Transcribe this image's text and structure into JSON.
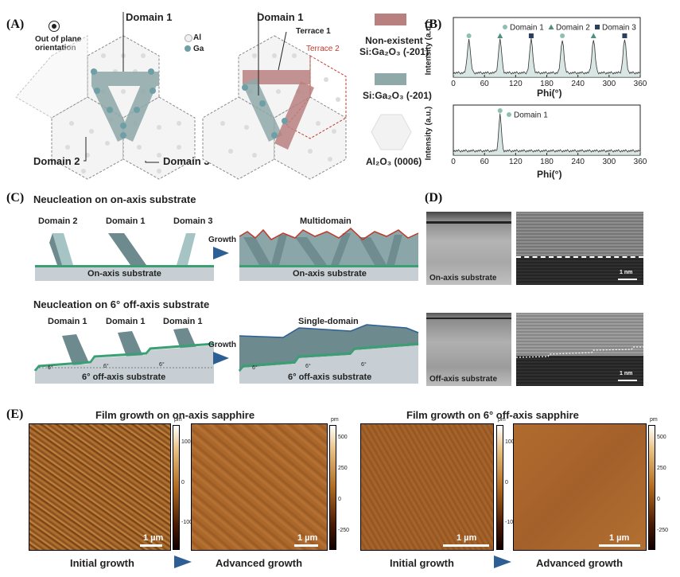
{
  "panels": {
    "a": "(A)",
    "b": "(B)",
    "c": "(C)",
    "d": "(D)",
    "e": "(E)"
  },
  "panel_a": {
    "out_of_plane": "Out of plane\norientation",
    "domain1": "Domain 1",
    "domain2": "Domain 2",
    "domain3": "Domain 3",
    "legend_al": "Al",
    "legend_ga": "Ga",
    "terrace1": "Terrace 1",
    "terrace2": "Terrace 2",
    "key_nonexistent": "Non-existent\nSi:Ga₂O₃ (-201)",
    "key_existing": "Si:Ga₂O₃ (-201)",
    "key_substrate": "Al₂O₃ (0006)",
    "colors": {
      "nonexistent": "#b98080",
      "existing": "#8fa8a8",
      "al": "#f2f2f2",
      "ga": "#6e9ea6"
    }
  },
  "chart_data": [
    {
      "type": "line",
      "xlabel": "Phi(°)",
      "ylabel": "Intensity (a.u.)",
      "xlim": [
        0,
        360
      ],
      "xticks": [
        "0",
        "60",
        "120",
        "180",
        "240",
        "300",
        "360"
      ],
      "legend": [
        "Domain 1",
        "Domain 2",
        "Domain 3"
      ],
      "peaks": [
        {
          "x": 30,
          "domain": "Domain 1"
        },
        {
          "x": 90,
          "domain": "Domain 2"
        },
        {
          "x": 150,
          "domain": "Domain 3"
        },
        {
          "x": 210,
          "domain": "Domain 1"
        },
        {
          "x": 270,
          "domain": "Domain 2"
        },
        {
          "x": 330,
          "domain": "Domain 3"
        }
      ]
    },
    {
      "type": "line",
      "xlabel": "Phi(°)",
      "ylabel": "Intensity (a.u.)",
      "xlim": [
        0,
        360
      ],
      "xticks": [
        "0",
        "60",
        "120",
        "180",
        "240",
        "300",
        "360"
      ],
      "legend": [
        "Domain 1"
      ],
      "peaks": [
        {
          "x": 90,
          "domain": "Domain 1"
        }
      ]
    }
  ],
  "panel_c": {
    "title_on": "Neucleation on on-axis substrate",
    "title_off": "Neucleation on 6° off-axis substrate",
    "growth": "Growth",
    "on_domains": [
      "Domain 2",
      "Domain 1",
      "Domain 3"
    ],
    "off_domains": [
      "Domain 1",
      "Domain 1",
      "Domain 1"
    ],
    "multidomain": "Multidomain",
    "single": "Single-domain",
    "on_sub": "On-axis substrate",
    "off_sub": "6° off-axis substrate",
    "angle": "6°"
  },
  "panel_d": {
    "on_sub": "On-axis substrate",
    "off_sub": "Off-axis substrate",
    "scale": "1 nm"
  },
  "panel_e": {
    "title_on": "Film growth on on-axis sapphire",
    "title_off": "Film growth  on 6° off-axis sapphire",
    "initial": "Initial growth",
    "advanced": "Advanced growth",
    "scale": "1 µm",
    "unit": "pm",
    "cbar1": [
      "100",
      "0",
      "-100"
    ],
    "cbar2": [
      "500",
      "250",
      "0",
      "-250"
    ]
  }
}
